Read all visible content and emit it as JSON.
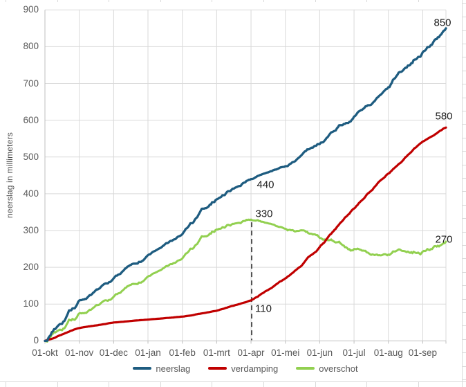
{
  "chart_data": {
    "type": "line",
    "title": "",
    "ylabel": "neerslag in millimeters",
    "ylim": [
      0,
      900
    ],
    "grid": true,
    "legend_position": "bottom",
    "y_ticks": [
      "0",
      "100",
      "200",
      "300",
      "400",
      "500",
      "600",
      "700",
      "800",
      "900"
    ],
    "x_months": [
      "01-okt",
      "01-nov",
      "01-dec",
      "01-jan",
      "01-feb",
      "01-mrt",
      "01-apr",
      "01-mei",
      "01-jun",
      "01-jul",
      "01-aug",
      "01-sep"
    ],
    "series": [
      {
        "name": "neerslag",
        "color": "#1e5c80",
        "values_by_month": [
          0,
          110,
          170,
          233,
          290,
          385,
          440,
          475,
          535,
          610,
          690,
          785
        ],
        "value_end": 850
      },
      {
        "name": "verdamping",
        "color": "#c00000",
        "values_by_month": [
          0,
          35,
          50,
          58,
          66,
          82,
          110,
          170,
          255,
          360,
          455,
          542
        ],
        "value_end": 580
      },
      {
        "name": "overschot",
        "color": "#92d050",
        "values_by_month": [
          0,
          75,
          120,
          175,
          224,
          303,
          330,
          305,
          280,
          250,
          235,
          243
        ],
        "value_end": 270,
        "derived": "neerslag - verdamping"
      }
    ],
    "annotations": [
      {
        "text": "440",
        "series": "neerslag",
        "at": "01-apr"
      },
      {
        "text": "330",
        "series": "overschot",
        "at": "01-apr"
      },
      {
        "text": "110",
        "series": "verdamping",
        "at": "01-apr"
      },
      {
        "text": "850",
        "series": "neerslag",
        "at": "einde"
      },
      {
        "text": "580",
        "series": "verdamping",
        "at": "einde"
      },
      {
        "text": "270",
        "series": "overschot",
        "at": "einde"
      }
    ],
    "reference_line": {
      "at": "01-apr",
      "from_value": 330,
      "to_value": 0,
      "style": "dashed"
    },
    "colors": {
      "gridline": "#d9d9d9",
      "axis": "#bfbfbf",
      "tick_text": "#595959",
      "annotation_text": "#1a1a1a"
    }
  }
}
